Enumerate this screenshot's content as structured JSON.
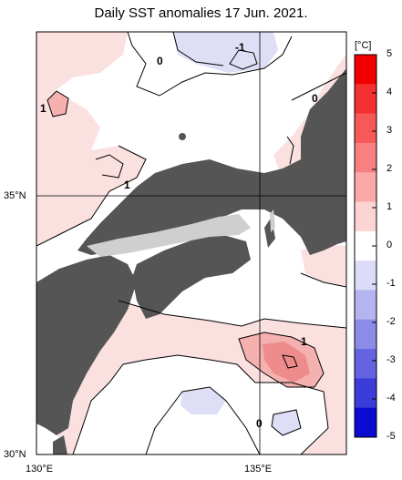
{
  "title": "Daily SST anomalies 17 Jun. 2021.",
  "axes": {
    "x_ticks": [
      "130°E",
      "135°E"
    ],
    "y_ticks": [
      "35°N",
      "30°N"
    ]
  },
  "contour_labels": [
    "-1",
    "0",
    "0",
    "1",
    "1",
    "1",
    "0"
  ],
  "colorbar": {
    "unit": "[°C]",
    "ticks": [
      "5",
      "4",
      "3",
      "2",
      "1",
      "0",
      "-1",
      "-2",
      "-3",
      "-4",
      "-5"
    ],
    "colors": [
      "#f00000",
      "#f53030",
      "#f75858",
      "#f98080",
      "#fba8a8",
      "#fdd4d4",
      "#ffffff",
      "#dcdcf8",
      "#b4b4f0",
      "#8c8ce8",
      "#6464e0",
      "#3c3cd8",
      "#0a0ad0"
    ]
  },
  "colors": {
    "land": "#555555",
    "lake": "#cfcfcf",
    "warm_light": "#fbe0e0",
    "warm_mid": "#f5b0b0",
    "warm_strong": "#ee8c8c",
    "cool_light": "#dedef7"
  }
}
